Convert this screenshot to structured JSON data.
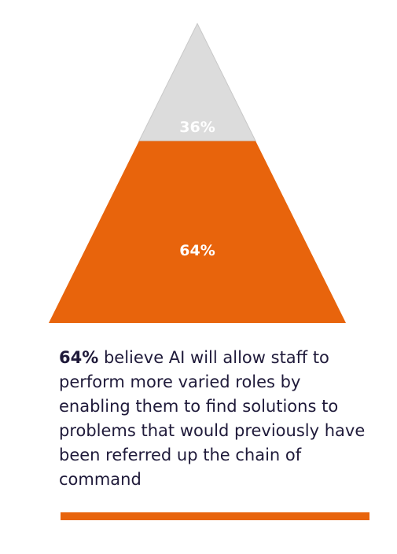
{
  "colors": {
    "top_segment": "#dcdcdc",
    "bottom_segment": "#e8640c",
    "label": "#ffffff",
    "caption_text": "#1f1a3a",
    "rule": "#e8640c"
  },
  "chart_data": {
    "type": "pyramid",
    "segments": [
      {
        "value": 36,
        "label": "36%"
      },
      {
        "value": 64,
        "label": "64%"
      }
    ]
  },
  "caption": {
    "lead": "64%",
    "body": " believe AI will allow staff to perform more varied roles by enabling them to find solutions to problems that would previously have been referred up the chain of command"
  }
}
